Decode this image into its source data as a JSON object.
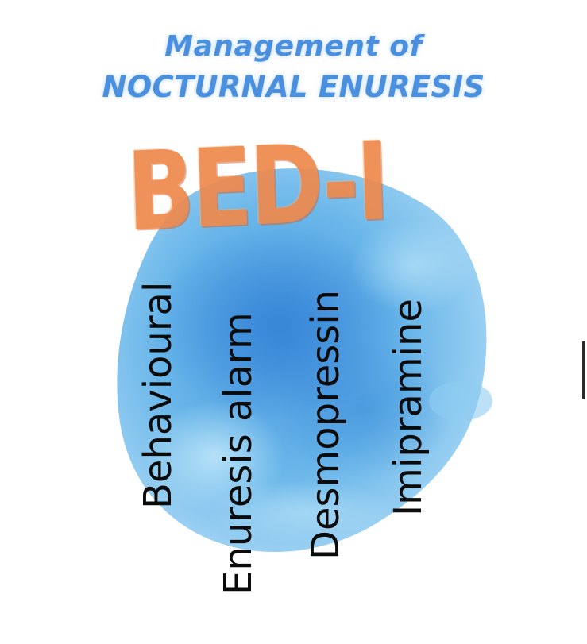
{
  "title": {
    "line1": "Management of",
    "line2": "NOCTURNAL ENURESIS"
  },
  "acronym": "BED-I",
  "terms": [
    "Behavioural",
    "Enuresis alarm",
    "Desmopressin",
    "Imipramine"
  ],
  "colors": {
    "title": "#4a90de",
    "acronym": "#ee8a4e",
    "watercolor_blob": "#5ab0e6",
    "terms_text": "#0b0b0b"
  }
}
